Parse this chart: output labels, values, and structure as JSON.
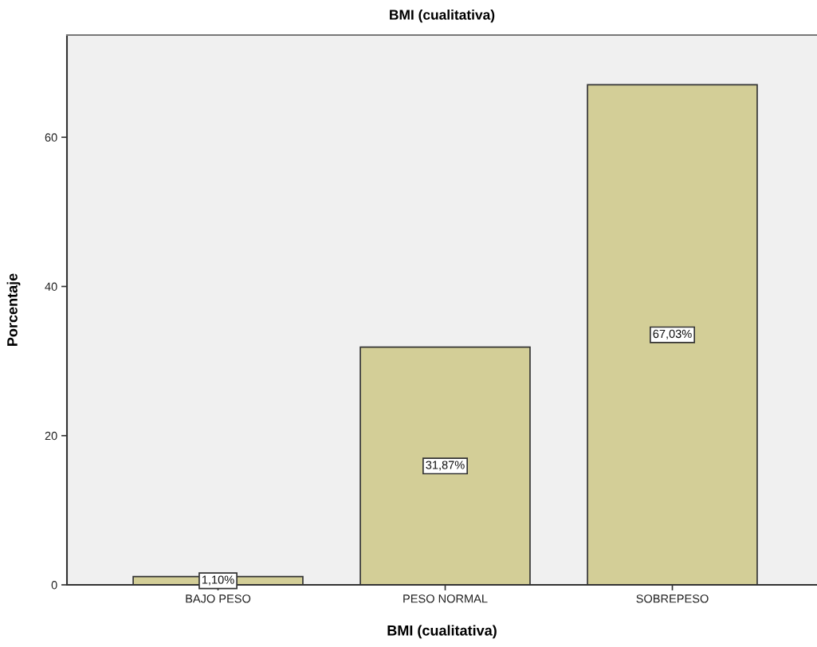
{
  "chart_data": {
    "type": "bar",
    "title": "BMI (cualitativa)",
    "xlabel": "BMI (cualitativa)",
    "ylabel": "Porcentaje",
    "categories": [
      "BAJO PESO",
      "PESO NORMAL",
      "SOBREPESO"
    ],
    "values": [
      1.1,
      31.87,
      67.03
    ],
    "value_labels": [
      "1,10%",
      "31,87%",
      "67,03%"
    ],
    "color": "#d3ce97",
    "ylim": [
      0,
      73.7
    ],
    "yticks": [
      0,
      20,
      40,
      60
    ]
  }
}
